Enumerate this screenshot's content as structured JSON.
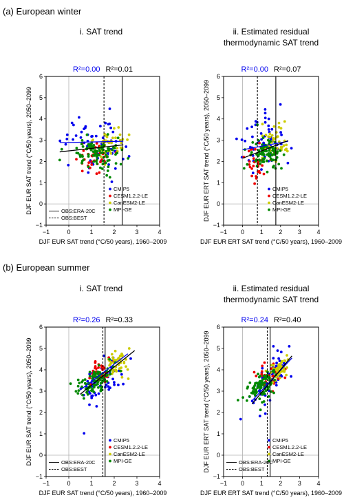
{
  "figure": {
    "sections": [
      {
        "label": "(a) European winter"
      },
      {
        "label": "(b) European summer"
      }
    ]
  },
  "colors": {
    "CMIP5": "#0000ee",
    "CESM1.2.2-LE": "#ee0000",
    "CanESM2-LE": "#cccc00",
    "MPI-GE": "#008800",
    "r2_blue": "#0000ee",
    "r2_black": "#000000"
  },
  "chart_data": [
    {
      "type": "scatter",
      "title_lines": [
        "i. SAT trend"
      ],
      "r2_blue": "R²=0.00",
      "r2_black": "R²=0.01",
      "xlabel": "DJF EUR SAT trend (°C/50 years), 1960–2009",
      "ylabel": "DJF EUR SAT trend (°C/50 years), 2050–2099",
      "xlim": [
        -1,
        4
      ],
      "ylim": [
        -1,
        6
      ],
      "xticks": [
        -1,
        0,
        1,
        2,
        3,
        4
      ],
      "yticks": [
        -1,
        0,
        1,
        2,
        3,
        4,
        5,
        6
      ],
      "obs_lines": {
        "ERA-20C": 2.35,
        "BEST": 1.55
      },
      "legend_position": "lower-right",
      "legend_series": [
        "CMIP5",
        "CESM1.2.2-LE",
        "CanESM2-LE",
        "MPI-GE"
      ],
      "legend_obs": [
        "OBS:ERA-20C",
        "OBS:BEST"
      ],
      "regression_lines": [
        {
          "style": "blue",
          "x": [
            -0.4,
            2.4
          ],
          "y": [
            2.88,
            2.95
          ]
        },
        {
          "style": "black",
          "x": [
            -0.4,
            2.4
          ],
          "y": [
            2.45,
            2.78
          ]
        }
      ],
      "point_clouds": [
        {
          "series": "CMIP5",
          "n": 60,
          "cx": 1.2,
          "sx": 0.7,
          "cy": 2.9,
          "sy": 0.75,
          "slope": 0.02
        },
        {
          "series": "CESM1.2.2-LE",
          "n": 35,
          "cx": 1.0,
          "sx": 0.35,
          "cy": 2.2,
          "sy": 0.35,
          "slope": 0.0
        },
        {
          "series": "CanESM2-LE",
          "n": 45,
          "cx": 1.9,
          "sx": 0.35,
          "cy": 2.9,
          "sy": 0.35,
          "slope": 0.0
        },
        {
          "series": "MPI-GE",
          "n": 90,
          "cx": 1.3,
          "sx": 0.55,
          "cy": 2.3,
          "sy": 0.4,
          "slope": 0.0
        }
      ]
    },
    {
      "type": "scatter",
      "title_lines": [
        "ii. Estimated  residual",
        "thermodynamic SAT trend"
      ],
      "r2_blue": "R²=0.00",
      "r2_black": "R²=0.07",
      "xlabel": "DJF EUR ERT SAT trend (°C/50 years), 1960–2009",
      "ylabel": "DJF EUR ERT SAT trend (°C/50 years), 2050–2099",
      "xlim": [
        -1,
        4
      ],
      "ylim": [
        -1,
        6
      ],
      "xticks": [
        -1,
        0,
        1,
        2,
        3,
        4
      ],
      "yticks": [
        -1,
        0,
        1,
        2,
        3,
        4,
        5,
        6
      ],
      "obs_lines": {
        "ERA-20C": 1.75,
        "BEST": 0.78
      },
      "legend_position": "lower-right",
      "legend_series": [
        "CMIP5",
        "CESM1.2.2-LE",
        "CanESM2-LE",
        "MPI-GE"
      ],
      "legend_obs": [],
      "regression_lines": [
        {
          "style": "blue",
          "x": [
            0.0,
            2.4
          ],
          "y": [
            2.55,
            2.95
          ]
        },
        {
          "style": "black",
          "x": [
            0.0,
            2.4
          ],
          "y": [
            2.15,
            2.98
          ]
        }
      ],
      "point_clouds": [
        {
          "series": "CMIP5",
          "n": 60,
          "cx": 1.0,
          "sx": 0.6,
          "cy": 2.9,
          "sy": 0.7,
          "slope": 0.1
        },
        {
          "series": "CESM1.2.2-LE",
          "n": 35,
          "cx": 0.75,
          "sx": 0.35,
          "cy": 1.9,
          "sy": 0.35,
          "slope": 0.0
        },
        {
          "series": "CanESM2-LE",
          "n": 45,
          "cx": 1.7,
          "sx": 0.35,
          "cy": 3.0,
          "sy": 0.4,
          "slope": 0.0
        },
        {
          "series": "MPI-GE",
          "n": 90,
          "cx": 1.2,
          "sx": 0.5,
          "cy": 2.4,
          "sy": 0.4,
          "slope": 0.0
        }
      ]
    },
    {
      "type": "scatter",
      "title_lines": [
        "i. SAT trend"
      ],
      "r2_blue": "R²=0.26",
      "r2_black": "R²=0.33",
      "xlabel": "DJF EUR SAT trend (°C/50 years), 1960–2009",
      "ylabel": "DJF EUR SAT trend (°C/50 years), 2050–2099",
      "xlim": [
        -1,
        4
      ],
      "ylim": [
        -1,
        6
      ],
      "xticks": [
        -1,
        0,
        1,
        2,
        3,
        4
      ],
      "yticks": [
        -1,
        0,
        1,
        2,
        3,
        4,
        5,
        6
      ],
      "obs_lines": {
        "ERA-20C": 1.6,
        "BEST": 1.5
      },
      "legend_position": "lower-right",
      "legend_series": [
        "CMIP5",
        "CESM1.2.2-LE",
        "CanESM2-LE",
        "MPI-GE"
      ],
      "legend_obs": [
        "OBS:ERA-20C",
        "OBS:BEST"
      ],
      "regression_lines": [
        {
          "style": "blue",
          "x": [
            0.5,
            2.6
          ],
          "y": [
            3.05,
            4.75
          ]
        },
        {
          "style": "black",
          "x": [
            0.5,
            2.9
          ],
          "y": [
            2.85,
            4.9
          ]
        }
      ],
      "point_clouds": [
        {
          "series": "CMIP5",
          "n": 60,
          "cx": 1.5,
          "sx": 0.55,
          "cy": 3.6,
          "sy": 0.55,
          "slope": 0.8
        },
        {
          "series": "CESM1.2.2-LE",
          "n": 35,
          "cx": 1.35,
          "sx": 0.3,
          "cy": 3.85,
          "sy": 0.3,
          "slope": 0.4
        },
        {
          "series": "CanESM2-LE",
          "n": 45,
          "cx": 2.2,
          "sx": 0.25,
          "cy": 4.35,
          "sy": 0.3,
          "slope": 0.5
        },
        {
          "series": "MPI-GE",
          "n": 90,
          "cx": 1.1,
          "sx": 0.4,
          "cy": 3.45,
          "sy": 0.3,
          "slope": 0.6
        }
      ]
    },
    {
      "type": "scatter",
      "title_lines": [
        "ii. Estimated  residual",
        "thermodynamic SAT trend"
      ],
      "r2_blue": "R²=0.24",
      "r2_black": "R²=0.40",
      "xlabel": "DJF EUR ERT SAT trend (°C/50 years), 1960–2009",
      "ylabel": "DJF EUR ERT SAT trend (°C/50 years), 2050–2099",
      "xlim": [
        -1,
        4
      ],
      "ylim": [
        -1,
        6
      ],
      "xticks": [
        -1,
        0,
        1,
        2,
        3,
        4
      ],
      "yticks": [
        -1,
        0,
        1,
        2,
        3,
        4,
        5,
        6
      ],
      "obs_lines": {
        "ERA-20C": 1.45,
        "BEST": 1.3
      },
      "legend_position": "lower-right",
      "legend_series": [
        "CMIP5",
        "CESM1.2.2-LE",
        "CanESM2-LE",
        "MPI-GE"
      ],
      "legend_obs": [
        "OBS:ERA-20C",
        "OBS:BEST"
      ],
      "regression_lines": [
        {
          "style": "blue",
          "x": [
            0.5,
            2.6
          ],
          "y": [
            2.55,
            4.55
          ]
        },
        {
          "style": "black",
          "x": [
            0.5,
            2.6
          ],
          "y": [
            2.4,
            4.65
          ]
        }
      ],
      "point_clouds": [
        {
          "series": "CMIP5",
          "n": 60,
          "cx": 1.4,
          "sx": 0.55,
          "cy": 3.5,
          "sy": 0.6,
          "slope": 0.8
        },
        {
          "series": "CESM1.2.2-LE",
          "n": 35,
          "cx": 1.5,
          "sx": 0.3,
          "cy": 3.75,
          "sy": 0.3,
          "slope": 0.4
        },
        {
          "series": "CanESM2-LE",
          "n": 45,
          "cx": 1.9,
          "sx": 0.25,
          "cy": 4.0,
          "sy": 0.3,
          "slope": 0.5
        },
        {
          "series": "MPI-GE",
          "n": 90,
          "cx": 1.0,
          "sx": 0.4,
          "cy": 3.2,
          "sy": 0.3,
          "slope": 0.6
        }
      ]
    }
  ]
}
